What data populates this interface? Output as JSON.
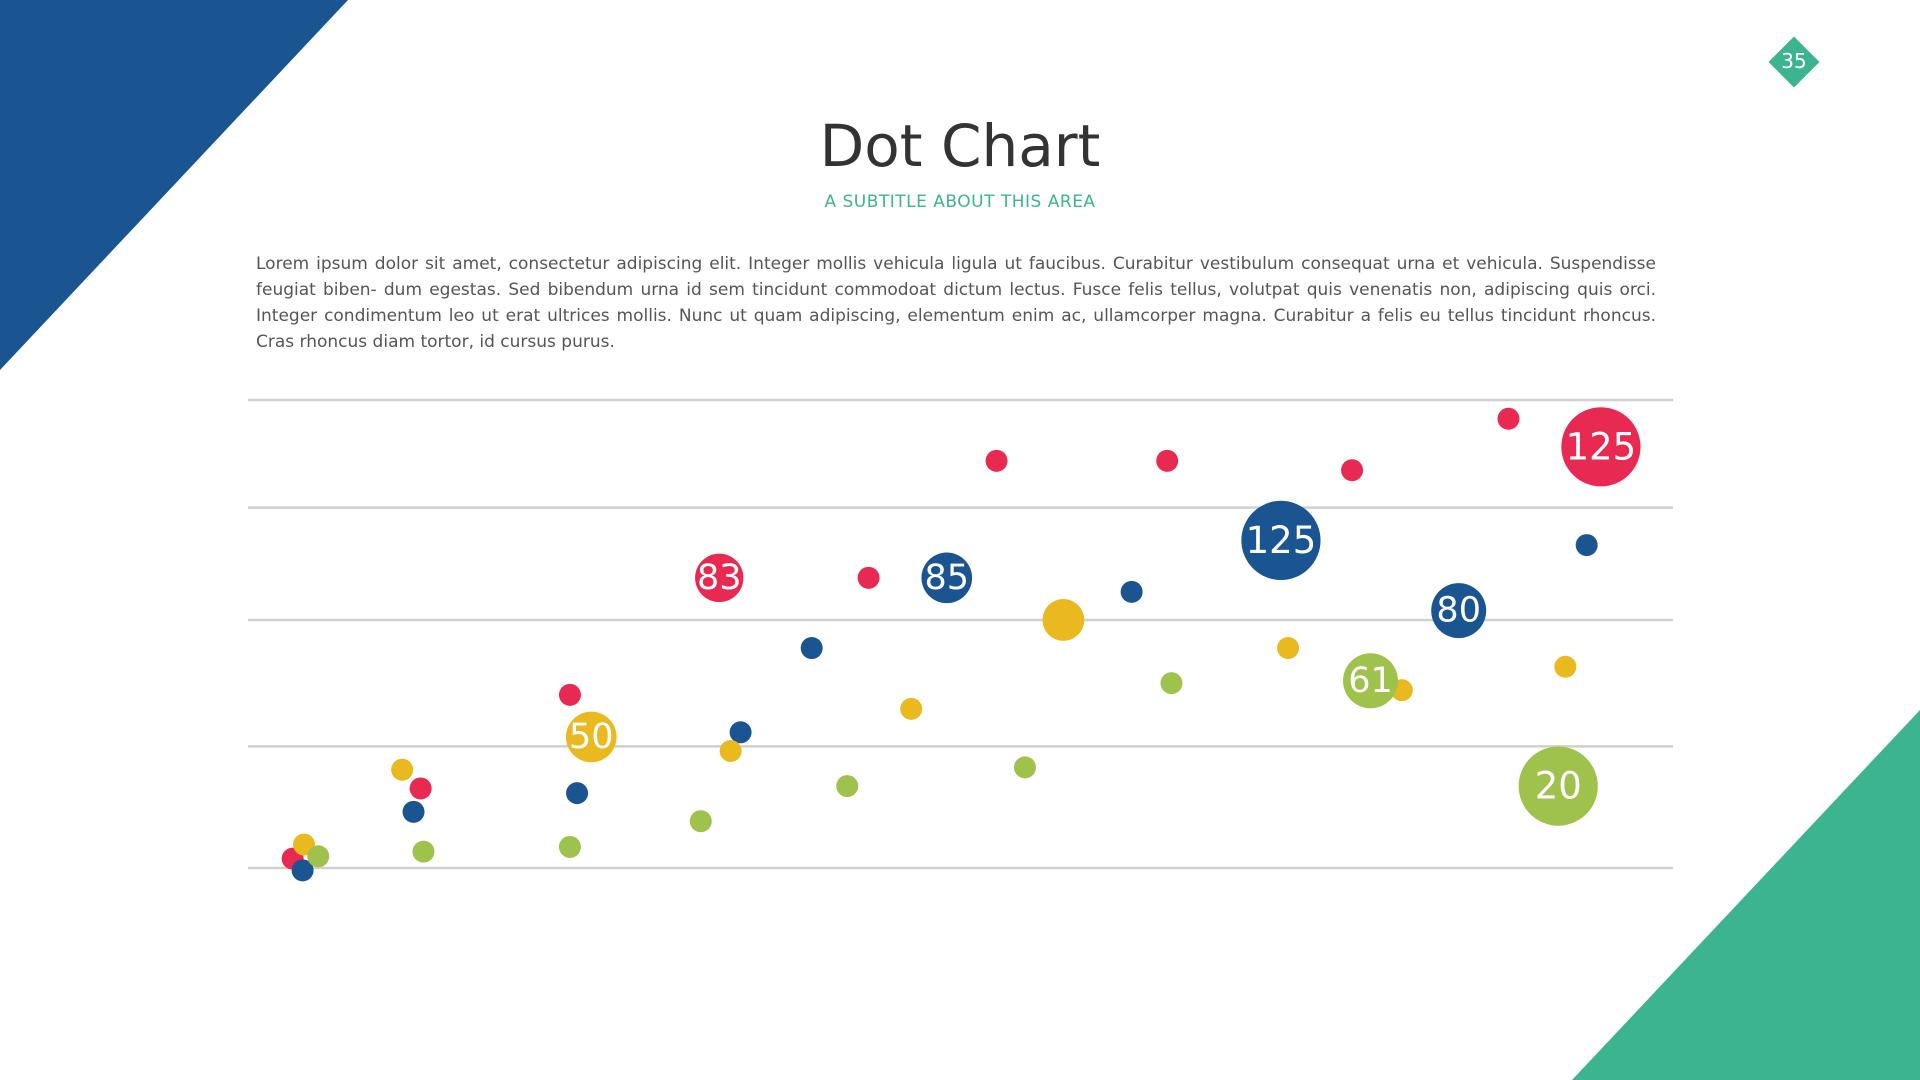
{
  "colors": {
    "navy": "#1a5592",
    "teal": "#3cb490",
    "red": "#e82a52",
    "yellow": "#e9b91f",
    "green": "#9fc24d",
    "gridline": "#d0d0d0"
  },
  "slide": {
    "page_number": "35",
    "title": "Dot Chart",
    "subtitle": "A SUBTITLE ABOUT THIS AREA",
    "body": "Lorem ipsum dolor sit amet, consectetur adipiscing elit. Integer mollis vehicula ligula ut faucibus. Curabitur vestibulum consequat urna et vehicula. Suspendisse feugiat biben- dum egestas. Sed bibendum urna id sem tincidunt commodoat dictum lectus. Fusce felis tellus, volutpat quis venenatis non, adipiscing quis orci. Integer condimentum leo ut erat ultrices mollis. Nunc ut quam adipiscing, elementum enim ac, ullamcorper magna. Curabitur a felis eu tellus tincidunt rhoncus. Cras rhoncus diam tortor, id cursus purus."
  },
  "chart_data": {
    "type": "scatter",
    "title": "Dot Chart",
    "grid": true,
    "axis_labels_visible": false,
    "xlim": [
      0,
      100
    ],
    "ylim": [
      0,
      100
    ],
    "gridlines_y": [
      0,
      26,
      53,
      77,
      100
    ],
    "size_unit_note": "size is relative bubble magnitude (small dots = 1)",
    "series": [
      {
        "name": "red",
        "color": "#e82a52",
        "points": [
          {
            "x": 3,
            "y": 2,
            "size": 1
          },
          {
            "x": 12,
            "y": 17,
            "size": 1
          },
          {
            "x": 22.5,
            "y": 37,
            "size": 1
          },
          {
            "x": 33,
            "y": 62,
            "size": 2.2,
            "label": "83"
          },
          {
            "x": 43.5,
            "y": 62,
            "size": 1
          },
          {
            "x": 52.5,
            "y": 87,
            "size": 1
          },
          {
            "x": 64.5,
            "y": 87,
            "size": 1
          },
          {
            "x": 77.5,
            "y": 85,
            "size": 1
          },
          {
            "x": 88.5,
            "y": 96,
            "size": 1
          },
          {
            "x": 95,
            "y": 90,
            "size": 3.6,
            "label": "125"
          }
        ]
      },
      {
        "name": "navy",
        "color": "#1a5592",
        "points": [
          {
            "x": 3.7,
            "y": -0.5,
            "size": 1
          },
          {
            "x": 11.5,
            "y": 12,
            "size": 1
          },
          {
            "x": 23,
            "y": 16,
            "size": 1
          },
          {
            "x": 34.5,
            "y": 29,
            "size": 1
          },
          {
            "x": 39.5,
            "y": 47,
            "size": 1
          },
          {
            "x": 49,
            "y": 62,
            "size": 2.3,
            "label": "85"
          },
          {
            "x": 62,
            "y": 59,
            "size": 1
          },
          {
            "x": 72.5,
            "y": 70,
            "size": 3.6,
            "label": "125"
          },
          {
            "x": 85,
            "y": 55,
            "size": 2.5,
            "label": "80"
          },
          {
            "x": 94,
            "y": 69,
            "size": 1
          }
        ]
      },
      {
        "name": "yellow",
        "color": "#e9b91f",
        "points": [
          {
            "x": 3.8,
            "y": 5,
            "size": 1
          },
          {
            "x": 10.7,
            "y": 21,
            "size": 1
          },
          {
            "x": 24,
            "y": 28,
            "size": 2.3,
            "label": "50"
          },
          {
            "x": 33.8,
            "y": 25,
            "size": 1
          },
          {
            "x": 46.5,
            "y": 34,
            "size": 1
          },
          {
            "x": 57.2,
            "y": 53,
            "size": 1.9
          },
          {
            "x": 73,
            "y": 47,
            "size": 1
          },
          {
            "x": 81,
            "y": 38,
            "size": 1
          },
          {
            "x": 92.5,
            "y": 43,
            "size": 1
          }
        ]
      },
      {
        "name": "green",
        "color": "#9fc24d",
        "points": [
          {
            "x": 4.8,
            "y": 2.5,
            "size": 1
          },
          {
            "x": 12.2,
            "y": 3.5,
            "size": 1
          },
          {
            "x": 22.5,
            "y": 4.5,
            "size": 1
          },
          {
            "x": 31.7,
            "y": 10,
            "size": 1
          },
          {
            "x": 42,
            "y": 17.5,
            "size": 1
          },
          {
            "x": 54.5,
            "y": 21.5,
            "size": 1
          },
          {
            "x": 64.8,
            "y": 39.5,
            "size": 1
          },
          {
            "x": 78.8,
            "y": 40,
            "size": 2.5,
            "label": "61"
          },
          {
            "x": 92,
            "y": 17.5,
            "size": 3.6,
            "label": "20"
          }
        ]
      }
    ]
  }
}
